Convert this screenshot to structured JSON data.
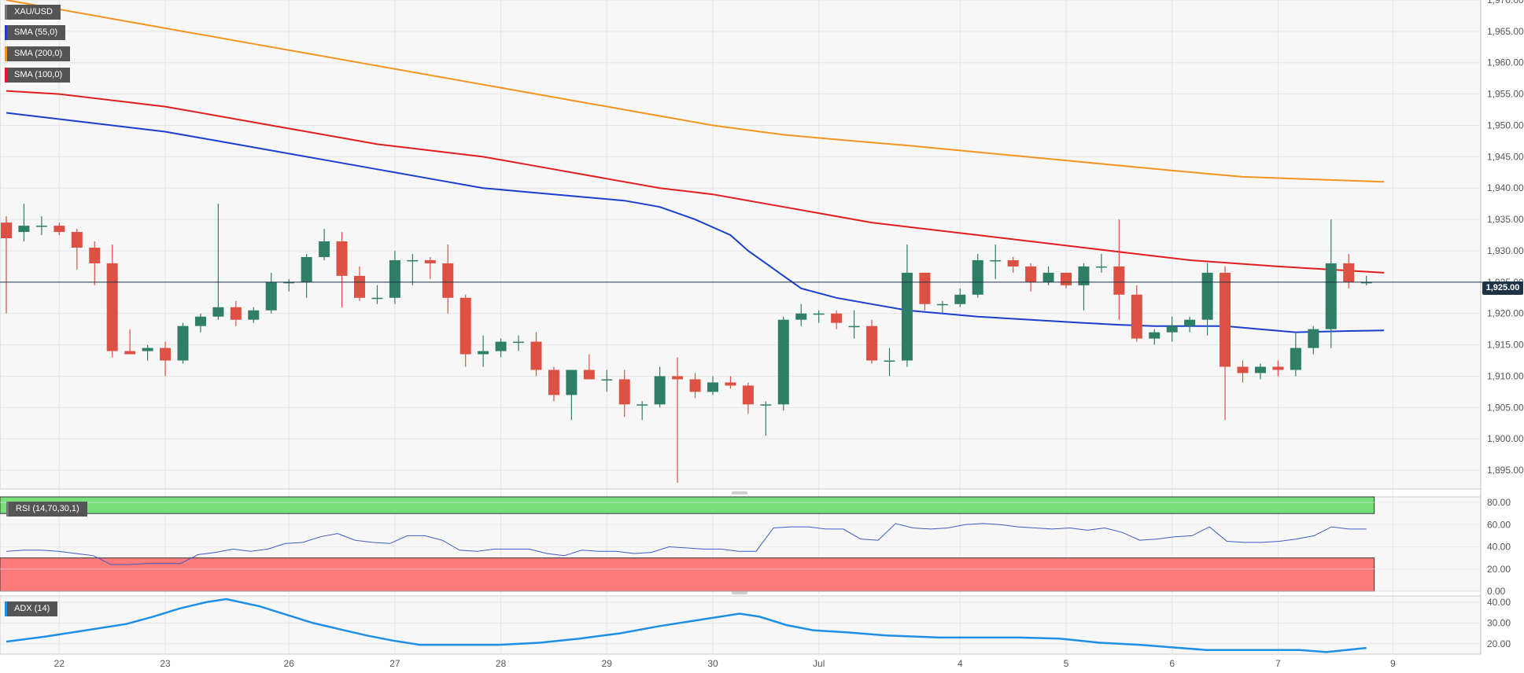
{
  "legends": {
    "main": [
      {
        "label": "XAU/USD",
        "color": "#555555"
      },
      {
        "label": "SMA (55,0)",
        "color": "#1a3fcf"
      },
      {
        "label": "SMA (200,0)",
        "color": "#f5931f"
      },
      {
        "label": "SMA (100,0)",
        "color": "#e21d1d"
      }
    ],
    "rsi": {
      "label": "RSI (14,70,30,1)",
      "color": "#333333"
    },
    "adx": {
      "label": "ADX (14)",
      "color": "#1e8fe6"
    }
  },
  "current_price": {
    "label": "1,925.00",
    "value": 1925.0
  },
  "colors": {
    "up": "#2f7e68",
    "down": "#dd5144",
    "sma55": "#1a3fcf",
    "sma100": "#e21d1d",
    "sma200": "#f5931f",
    "rsi_line": "#3f5bc0",
    "rsi_overbought": "#78e07a",
    "rsi_oversold": "#ff7b7b",
    "adx_line": "#1e8fe6",
    "price_line": "#1f3347",
    "grid": "#e6e6e6"
  },
  "chart_data": [
    {
      "type": "candlestick",
      "title": "XAU/USD",
      "ylim": [
        1892,
        1970
      ],
      "y_ticks": [
        "1,895.00",
        "1,900.00",
        "1,905.00",
        "1,910.00",
        "1,915.00",
        "1,920.00",
        "1,925.00",
        "1,930.00",
        "1,935.00",
        "1,940.00",
        "1,945.00",
        "1,950.00",
        "1,955.00",
        "1,960.00",
        "1,965.00",
        "1,970.00"
      ],
      "y_tick_values": [
        1895,
        1900,
        1905,
        1910,
        1915,
        1920,
        1925,
        1930,
        1935,
        1940,
        1945,
        1950,
        1955,
        1960,
        1965,
        1970
      ],
      "x_labels": [
        "22",
        "23",
        "26",
        "27",
        "28",
        "29",
        "30",
        "Jul",
        "4",
        "5",
        "6",
        "7",
        "9"
      ],
      "x_label_index": [
        3,
        9,
        16,
        22,
        28,
        34,
        40,
        46,
        54,
        60,
        66,
        72,
        78.5
      ],
      "n_bars": 78,
      "candles": [
        [
          1934.5,
          1935.5,
          1920.0,
          1932.0
        ],
        [
          1933.0,
          1937.5,
          1931.5,
          1934.0
        ],
        [
          1934.0,
          1935.5,
          1932.5,
          1934.0
        ],
        [
          1934.0,
          1934.5,
          1932.5,
          1933.0
        ],
        [
          1933.0,
          1933.5,
          1927.0,
          1930.5
        ],
        [
          1930.5,
          1931.5,
          1924.5,
          1928.0
        ],
        [
          1928.0,
          1931.0,
          1913.0,
          1914.0
        ],
        [
          1914.0,
          1917.5,
          1913.5,
          1913.5
        ],
        [
          1914.0,
          1915.0,
          1912.5,
          1914.5
        ],
        [
          1914.5,
          1915.5,
          1910.0,
          1912.5
        ],
        [
          1912.5,
          1918.5,
          1912.0,
          1918.0
        ],
        [
          1918.0,
          1920.0,
          1917.0,
          1919.5
        ],
        [
          1919.5,
          1937.5,
          1919.0,
          1921.0
        ],
        [
          1921.0,
          1922.0,
          1918.0,
          1919.0
        ],
        [
          1919.0,
          1921.0,
          1918.5,
          1920.5
        ],
        [
          1920.5,
          1926.5,
          1920.0,
          1925.0
        ],
        [
          1925.0,
          1925.5,
          1923.5,
          1925.0
        ],
        [
          1925.0,
          1929.5,
          1922.5,
          1929.0
        ],
        [
          1929.0,
          1933.5,
          1928.5,
          1931.5
        ],
        [
          1931.5,
          1933.0,
          1921.0,
          1926.0
        ],
        [
          1926.0,
          1927.5,
          1922.0,
          1922.5
        ],
        [
          1922.5,
          1924.5,
          1921.5,
          1922.5
        ],
        [
          1922.5,
          1930.0,
          1921.5,
          1928.5
        ],
        [
          1928.5,
          1929.5,
          1924.5,
          1928.5
        ],
        [
          1928.5,
          1929.0,
          1925.5,
          1928.0
        ],
        [
          1928.0,
          1931.0,
          1920.0,
          1922.5
        ],
        [
          1922.5,
          1923.0,
          1911.5,
          1913.5
        ],
        [
          1913.5,
          1916.5,
          1911.5,
          1914.0
        ],
        [
          1914.0,
          1916.0,
          1913.0,
          1915.5
        ],
        [
          1915.5,
          1916.5,
          1914.0,
          1915.5
        ],
        [
          1915.5,
          1917.0,
          1910.0,
          1911.0
        ],
        [
          1911.0,
          1911.5,
          1906.0,
          1907.0
        ],
        [
          1907.0,
          1911.0,
          1903.0,
          1911.0
        ],
        [
          1911.0,
          1913.5,
          1909.5,
          1909.5
        ],
        [
          1909.5,
          1911.0,
          1907.5,
          1909.5
        ],
        [
          1909.5,
          1911.0,
          1903.5,
          1905.5
        ],
        [
          1905.5,
          1906.0,
          1903.0,
          1905.5
        ],
        [
          1905.5,
          1911.5,
          1905.0,
          1910.0
        ],
        [
          1910.0,
          1913.0,
          1893.0,
          1909.5
        ],
        [
          1909.5,
          1910.5,
          1906.5,
          1907.5
        ],
        [
          1907.5,
          1910.0,
          1907.0,
          1909.0
        ],
        [
          1909.0,
          1910.0,
          1908.0,
          1908.5
        ],
        [
          1908.5,
          1909.0,
          1904.0,
          1905.5
        ],
        [
          1905.5,
          1906.0,
          1900.5,
          1905.5
        ],
        [
          1905.5,
          1919.5,
          1904.5,
          1919.0
        ],
        [
          1919.0,
          1921.5,
          1918.0,
          1920.0
        ],
        [
          1920.0,
          1920.5,
          1918.5,
          1920.0
        ],
        [
          1920.0,
          1920.5,
          1917.5,
          1918.5
        ],
        [
          1918.0,
          1920.5,
          1916.0,
          1918.0
        ],
        [
          1918.0,
          1919.0,
          1912.0,
          1912.5
        ],
        [
          1912.5,
          1914.5,
          1910.0,
          1912.5
        ],
        [
          1912.5,
          1931.0,
          1911.5,
          1926.5
        ],
        [
          1926.5,
          1926.5,
          1920.5,
          1921.5
        ],
        [
          1921.5,
          1922.0,
          1920.0,
          1921.5
        ],
        [
          1921.5,
          1924.0,
          1921.0,
          1923.0
        ],
        [
          1923.0,
          1929.5,
          1922.5,
          1928.5
        ],
        [
          1928.5,
          1931.0,
          1925.5,
          1928.5
        ],
        [
          1928.5,
          1929.0,
          1926.5,
          1927.5
        ],
        [
          1927.5,
          1928.0,
          1923.5,
          1925.0
        ],
        [
          1925.0,
          1927.5,
          1924.5,
          1926.5
        ],
        [
          1926.5,
          1926.5,
          1924.0,
          1924.5
        ],
        [
          1924.5,
          1928.0,
          1920.5,
          1927.5
        ],
        [
          1927.5,
          1929.5,
          1926.5,
          1927.5
        ],
        [
          1927.5,
          1935.0,
          1919.0,
          1923.0
        ],
        [
          1923.0,
          1924.5,
          1915.5,
          1916.0
        ],
        [
          1916.0,
          1917.5,
          1915.0,
          1917.0
        ],
        [
          1917.0,
          1919.5,
          1915.5,
          1918.0
        ],
        [
          1918.0,
          1919.5,
          1917.0,
          1919.0
        ],
        [
          1919.0,
          1928.0,
          1916.5,
          1926.5
        ],
        [
          1926.5,
          1927.5,
          1903.0,
          1911.5
        ],
        [
          1911.5,
          1912.5,
          1909.0,
          1910.5
        ],
        [
          1910.5,
          1912.0,
          1909.5,
          1911.5
        ],
        [
          1911.5,
          1912.5,
          1910.0,
          1911.0
        ],
        [
          1911.0,
          1917.0,
          1910.0,
          1914.5
        ],
        [
          1914.5,
          1918.0,
          1913.5,
          1917.5
        ],
        [
          1917.5,
          1935.0,
          1914.5,
          1928.0
        ],
        [
          1928.0,
          1929.5,
          1924.0,
          1925.0
        ],
        [
          1925.0,
          1926.0,
          1924.5,
          1925.0
        ]
      ],
      "sma55": [
        1952.0,
        1951.0,
        1950.0,
        1949.0,
        1947.5,
        1946.0,
        1944.5,
        1943.0,
        1941.5,
        1940.0,
        1939.5,
        1939.0,
        1938.5,
        1938.0,
        1937.0,
        1935.0,
        1932.5,
        1930.0,
        1928.0,
        1926.0,
        1924.0,
        1922.5,
        1921.5,
        1920.5,
        1920.0,
        1919.5,
        1919.0,
        1918.5,
        1918.2,
        1918.0,
        1918.0,
        1918.0,
        1917.5,
        1917.0,
        1917.2,
        1917.3
      ],
      "sma55_x": [
        0,
        3,
        6,
        9,
        12,
        15,
        18,
        21,
        24,
        27,
        29,
        31,
        33,
        35,
        37,
        39,
        41,
        42,
        43,
        44,
        45,
        47,
        49,
        51,
        53,
        55,
        58,
        61,
        63,
        65,
        67,
        69,
        71,
        73,
        76,
        78
      ],
      "sma100": [
        1955.5,
        1955.0,
        1954.0,
        1953.0,
        1951.5,
        1950.0,
        1948.5,
        1947.0,
        1946.0,
        1945.0,
        1944.0,
        1943.0,
        1941.5,
        1940.0,
        1939.0,
        1937.5,
        1936.0,
        1934.5,
        1933.5,
        1932.5,
        1931.5,
        1930.5,
        1929.5,
        1928.5,
        1927.5,
        1926.5
      ],
      "sma100_x": [
        0,
        3,
        6,
        9,
        12,
        15,
        18,
        21,
        24,
        27,
        29,
        31,
        34,
        37,
        40,
        43,
        46,
        49,
        52,
        55,
        58,
        61,
        64,
        67,
        72,
        78
      ],
      "sma200": [
        1970.0,
        1968.0,
        1966.0,
        1964.0,
        1962.0,
        1960.0,
        1958.0,
        1956.0,
        1954.0,
        1952.0,
        1950.0,
        1948.5,
        1947.5,
        1946.8,
        1946.0,
        1945.2,
        1944.4,
        1943.6,
        1942.8,
        1941.8,
        1941.0
      ],
      "sma200_x": [
        0,
        4,
        8,
        12,
        16,
        20,
        24,
        28,
        32,
        36,
        40,
        44,
        48,
        51,
        54,
        57,
        60,
        63,
        66,
        70,
        78
      ]
    },
    {
      "type": "line",
      "title": "RSI (14,70,30,1)",
      "ylim": [
        0,
        85
      ],
      "y_ticks": [
        "0.00",
        "20.00",
        "40.00",
        "60.00",
        "80.00"
      ],
      "y_tick_values": [
        0,
        20,
        40,
        60,
        80
      ],
      "bands": {
        "overbought": 70,
        "oversold": 30
      },
      "values": [
        36,
        37,
        37,
        36,
        34,
        32,
        24,
        24,
        25,
        25,
        25,
        33,
        35,
        38,
        36,
        38,
        43,
        44,
        49,
        52,
        46,
        44,
        43,
        50,
        50,
        46,
        37,
        36,
        38,
        38,
        38,
        34,
        32,
        37,
        36,
        36,
        34,
        35,
        40,
        39,
        38,
        38,
        36,
        36,
        57,
        58,
        58,
        56,
        56,
        47,
        46,
        61,
        57,
        56,
        57,
        60,
        61,
        60,
        58,
        57,
        56,
        57,
        55,
        57,
        53,
        46,
        47,
        49,
        50,
        58,
        45,
        44,
        44,
        45,
        47,
        50,
        58,
        56,
        56
      ],
      "x_index": [
        0,
        1,
        2,
        3,
        4,
        5,
        6,
        7,
        8,
        9,
        10,
        11,
        12,
        13,
        14,
        15,
        16,
        17,
        18,
        19,
        20,
        21,
        22,
        23,
        24,
        25,
        26,
        27,
        28,
        29,
        30,
        31,
        32,
        33,
        34,
        35,
        36,
        37,
        38,
        39,
        40,
        41,
        42,
        43,
        44,
        45,
        46,
        47,
        48,
        49,
        50,
        51,
        52,
        53,
        54,
        55,
        56,
        57,
        58,
        59,
        60,
        61,
        62,
        63,
        64,
        65,
        66,
        67,
        68,
        69,
        70,
        71,
        72,
        73,
        74,
        75,
        76,
        77,
        78
      ]
    },
    {
      "type": "line",
      "title": "ADX (14)",
      "ylim": [
        15,
        43
      ],
      "y_ticks": [
        "20.00",
        "30.00",
        "40.00"
      ],
      "y_tick_values": [
        20,
        30,
        40
      ],
      "values": [
        21.0,
        23.5,
        26.5,
        29.5,
        33.0,
        37.0,
        40.0,
        41.5,
        38.0,
        34.0,
        30.0,
        27.0,
        24.0,
        21.5,
        19.5,
        19.5,
        19.5,
        20.5,
        22.5,
        25.0,
        28.5,
        31.5,
        34.5,
        33.0,
        29.0,
        26.5,
        25.5,
        24.0,
        23.0,
        23.0,
        23.0,
        22.5,
        20.5,
        19.5,
        18.0,
        17.0,
        17.0,
        17.0,
        16.0,
        18.0
      ],
      "x_index": [
        0,
        3,
        6,
        9,
        11,
        13,
        15,
        16.5,
        19,
        21,
        23,
        25,
        27,
        29,
        31,
        34,
        37,
        40,
        43,
        46,
        49,
        52,
        55,
        56.5,
        58.5,
        60.5,
        63,
        66,
        70,
        73,
        76,
        79,
        82,
        85,
        88,
        90,
        94,
        97,
        99,
        102
      ]
    }
  ]
}
